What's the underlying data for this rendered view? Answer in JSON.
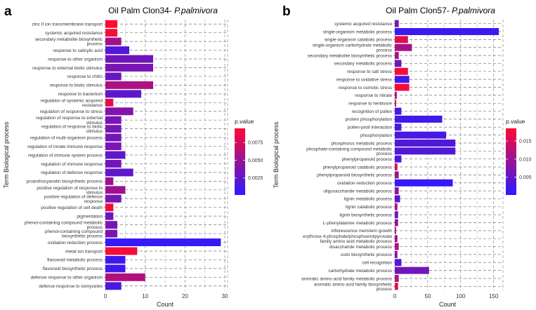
{
  "panels": [
    {
      "letter": "a",
      "title_prefix": "Oil Palm Clon34- ",
      "title_species": "P.palmivora"
    },
    {
      "letter": "b",
      "title_prefix": "Oil Palm Clon57- ",
      "title_species": "P.palmivora"
    }
  ],
  "chart_data": [
    {
      "type": "bar",
      "orientation": "horizontal",
      "title": "Oil Palm Clon34- P.palmivora",
      "xlabel": "Count",
      "ylabel": "Term Biological process",
      "xlim": [
        0,
        30
      ],
      "xticks": [
        "0",
        "10",
        "20",
        "30"
      ],
      "grid": true,
      "legend_position": "right",
      "color_scale": {
        "title": "p.value",
        "low_color": "#2B1BFF",
        "high_color": "#FF0A32",
        "range": [
          0.0001,
          0.0095
        ],
        "ticks": [
          "0.0025",
          "0.0050",
          "0.0075"
        ]
      },
      "categories": [
        "zinc II ion transmembrane transport",
        "systemic acquired resistance",
        "secondary metabolite biosynthetic process",
        "response to salicylic acid",
        "response to other organism",
        "response to external biotic stimulus",
        "response to chitin",
        "response to biotic stimulus",
        "response to bacterium",
        "regulation of systemic acquired resistance",
        "regulation of response to stress",
        "regulation of response to external stimulus",
        "regulation of response to biotic stimulus",
        "regulation of multi-organism process",
        "regulation of innate immune response",
        "regulation of immune system process",
        "regulation of immune response",
        "regulation of defense response",
        "proanthocyanidin biosynthetic process",
        "positive regulation of response to stimulus",
        "positive regulation of defense response",
        "positive regulation of cell death",
        "pigmentation",
        "phenol-containing compound metabolic process",
        "phenol-containing compound biosynthetic process",
        "oxidation-reduction process",
        "metal ion transport",
        "flavonoid metabolic process",
        "flavonoid biosynthetic process",
        "defense response to other organism",
        "defense response to oomycetes"
      ],
      "values": [
        3,
        3,
        4,
        6,
        12,
        12,
        4,
        12,
        9,
        2,
        7,
        4,
        4,
        4,
        4,
        5,
        4,
        7,
        2,
        5,
        4,
        2,
        2,
        3,
        3,
        29,
        8,
        5,
        5,
        10,
        4
      ],
      "pvalues": [
        0.0095,
        0.0092,
        0.0055,
        0.0018,
        0.0032,
        0.0035,
        0.003,
        0.0058,
        0.0024,
        0.0085,
        0.004,
        0.0035,
        0.0035,
        0.0034,
        0.0036,
        0.0024,
        0.0034,
        0.0025,
        0.005,
        0.0052,
        0.0035,
        0.009,
        0.003,
        0.0036,
        0.0036,
        0.0005,
        0.0092,
        0.001,
        0.001,
        0.006,
        0.0015
      ]
    },
    {
      "type": "bar",
      "orientation": "horizontal",
      "title": "Oil Palm Clon57- P.palmivora",
      "xlabel": "Count",
      "ylabel": "Term Biological process",
      "xlim": [
        0,
        160
      ],
      "xticks": [
        "0",
        "50",
        "100",
        "150"
      ],
      "grid": true,
      "legend_position": "right",
      "color_scale": {
        "title": "p.value",
        "low_color": "#2B1BFF",
        "high_color": "#FF0A32",
        "range": [
          0.0001,
          0.0185
        ],
        "ticks": [
          "0.005",
          "0.010",
          "0.015"
        ]
      },
      "categories": [
        "systemic acquired resistance",
        "single-organism metabolic process",
        "single-organism catabolic process",
        "single-organism carbohydrate metabolic process",
        "secondary metabolite biosynthetic process",
        "secondary metabolic process",
        "response to salt stress",
        "response to oxidative stress",
        "response to osmotic stress",
        "response to nitrate",
        "response to herbivore",
        "recognition of pollen",
        "protein phosphorylation",
        "pollen-pistil interaction",
        "phosphorylation",
        "phosphorus metabolic process",
        "phosphate-containing compound metabolic process",
        "phenylpropanoid process",
        "phenylpropanoid catabolic process",
        "phenylpropanoid biosynthetic process",
        "oxidation-reduction process",
        "oligosaccharide metabolic process",
        "lignin metabolic process",
        "lignin catabolic process",
        "lignin biosynthetic process",
        "L-phenylalanine metabolic process",
        "inflorescence meristem growth",
        "erythrose 4-phosphate/phosphoenolpyruvate family amino acid metabolic process",
        "disaccharide metabolic process",
        "cutin biosynthetic process",
        "cell recognition",
        "carbohydrate metabolic process",
        "aromatic amino acid family metabolic process",
        "aromatic amino acid family biosynthetic process"
      ],
      "values": [
        6,
        158,
        20,
        26,
        6,
        10,
        20,
        22,
        22,
        3,
        2,
        10,
        72,
        10,
        78,
        92,
        92,
        10,
        4,
        6,
        88,
        6,
        8,
        4,
        5,
        5,
        2,
        4,
        6,
        4,
        10,
        52,
        6,
        5
      ],
      "pvalues": [
        0.007,
        0.0015,
        0.016,
        0.011,
        0.011,
        0.006,
        0.018,
        0.002,
        0.0175,
        0.012,
        0.012,
        0.003,
        0.002,
        0.003,
        0.0025,
        0.0035,
        0.0035,
        0.0025,
        0.015,
        0.01,
        0.0008,
        0.009,
        0.004,
        0.012,
        0.006,
        0.009,
        0.011,
        0.01,
        0.012,
        0.008,
        0.004,
        0.006,
        0.012,
        0.016
      ]
    }
  ]
}
